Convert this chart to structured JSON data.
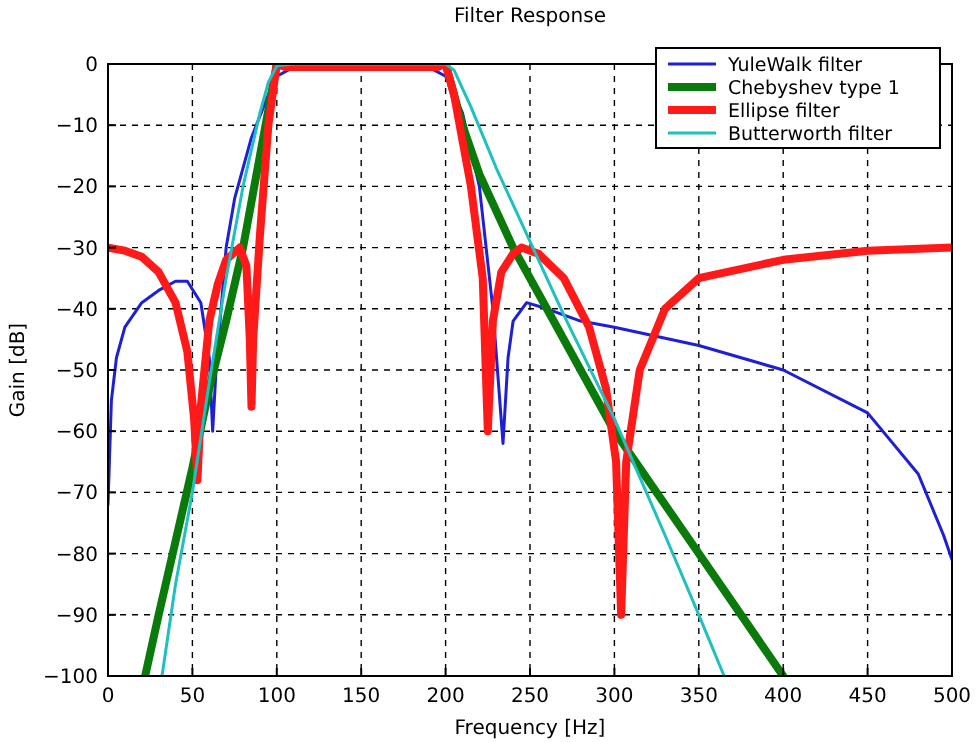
{
  "chart_data": {
    "type": "line",
    "title": "Filter Response",
    "xlabel": "Frequency [Hz]",
    "ylabel": "Gain [dB]",
    "xlim": [
      0,
      500
    ],
    "ylim": [
      -100,
      0
    ],
    "xticks": [
      0,
      50,
      100,
      150,
      200,
      250,
      300,
      350,
      400,
      450,
      500
    ],
    "yticks": [
      -100,
      -90,
      -80,
      -70,
      -60,
      -50,
      -40,
      -30,
      -20,
      -10,
      0
    ],
    "grid": true,
    "legend": "top right",
    "line_style": "solid",
    "marker": "none",
    "series": [
      {
        "name": "YuleWalk filter",
        "color": "#1f1fd6",
        "x": [
          0,
          2,
          5,
          10,
          20,
          30,
          40,
          47,
          55,
          60,
          62,
          64,
          70,
          75,
          85,
          95,
          100,
          110,
          150,
          190,
          200,
          210,
          220,
          228,
          234,
          237,
          240,
          248,
          260,
          280,
          300,
          350,
          400,
          450,
          480,
          495,
          500
        ],
        "values": [
          -72,
          -55,
          -48,
          -43,
          -39,
          -37,
          -35.5,
          -35.5,
          -39,
          -48,
          -60,
          -50,
          -30,
          -22,
          -12,
          -5,
          -2,
          -0.5,
          0,
          -0.5,
          -2,
          -8,
          -20,
          -40,
          -62,
          -48,
          -42,
          -39,
          -40,
          -42,
          -43,
          -46,
          -50,
          -57,
          -67,
          -77,
          -81
        ]
      },
      {
        "name": "Chebyshev type 1",
        "color": "#0a7a0a",
        "x": [
          22,
          30,
          40,
          50,
          60,
          70,
          80,
          90,
          100,
          200,
          210,
          220,
          240,
          260,
          300,
          350,
          400
        ],
        "values": [
          -100,
          -90,
          -78,
          -66,
          -53,
          -42,
          -30,
          -15,
          0,
          0,
          -10,
          -18,
          -30,
          -40,
          -60,
          -80,
          -100
        ]
      },
      {
        "name": "Ellipse filter",
        "color": "#ff1a1a",
        "x": [
          0,
          10,
          20,
          30,
          40,
          47,
          51,
          53,
          55,
          60,
          65,
          70,
          78,
          82,
          84,
          85,
          86,
          90,
          95,
          100,
          105,
          195,
          200,
          205,
          215,
          222,
          225,
          228,
          233,
          240,
          245,
          255,
          270,
          285,
          295,
          301,
          304,
          307,
          315,
          330,
          350,
          400,
          450,
          500
        ],
        "values": [
          -30,
          -30.5,
          -31.5,
          -34,
          -39,
          -47,
          -58,
          -68,
          -56,
          -42,
          -36,
          -32,
          -30,
          -33,
          -45,
          -56,
          -45,
          -28,
          -10,
          0,
          -0.5,
          -0.5,
          0,
          -5,
          -20,
          -35,
          -60,
          -42,
          -34,
          -31,
          -30,
          -31,
          -35,
          -43,
          -53,
          -65,
          -90,
          -65,
          -50,
          -40,
          -35,
          -32,
          -30.5,
          -30
        ]
      },
      {
        "name": "Butterworth filter",
        "color": "#1fc0c0",
        "x": [
          32,
          40,
          50,
          60,
          70,
          80,
          90,
          95,
          100,
          110,
          200,
          205,
          215,
          230,
          250,
          270,
          300,
          330,
          350,
          365
        ],
        "values": [
          -100,
          -85,
          -70,
          -52,
          -35,
          -20,
          -8,
          -3,
          -0.3,
          0,
          0,
          -1,
          -7,
          -17,
          -29,
          -41,
          -58,
          -77,
          -90,
          -100
        ]
      }
    ]
  }
}
